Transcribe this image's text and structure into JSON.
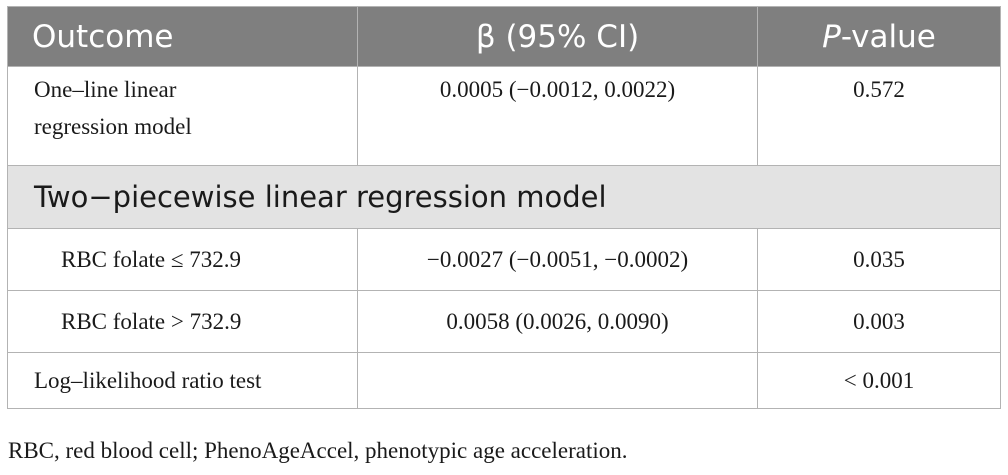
{
  "table": {
    "headers": {
      "outcome": "Outcome",
      "beta": "β (95% CI)",
      "p_prefix": "P",
      "p_suffix": "-value"
    },
    "rows": [
      {
        "outcome": "One–line linear regression model",
        "beta": "0.0005 (−0.0012, 0.0022)",
        "p": "0.572"
      }
    ],
    "section_label": "Two−piecewise linear regression model",
    "piecewise_rows": [
      {
        "outcome": "RBC folate ≤ 732.9",
        "beta": "−0.0027 (−0.0051, −0.0002)",
        "p": "0.035"
      },
      {
        "outcome": "RBC folate > 732.9",
        "beta": "0.0058 (0.0026, 0.0090)",
        "p": "0.003"
      }
    ],
    "likelihood_row": {
      "outcome": "Log–likelihood ratio test",
      "beta": "",
      "p": "< 0.001"
    }
  },
  "footnote": "RBC, red blood cell; PhenoAgeAccel, phenotypic age acceleration."
}
